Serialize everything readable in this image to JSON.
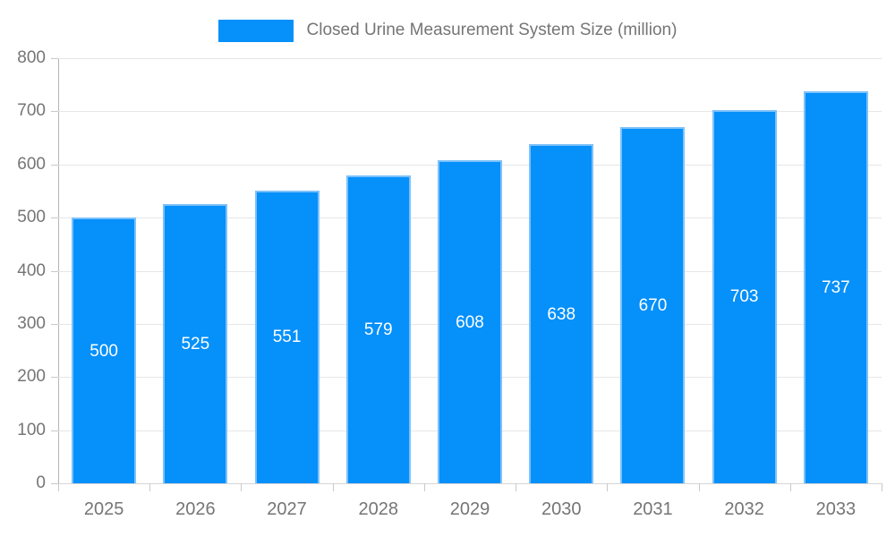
{
  "chart_data": {
    "type": "bar",
    "title": "Closed Urine Measurement System Size (million)",
    "categories": [
      "2025",
      "2026",
      "2027",
      "2028",
      "2029",
      "2030",
      "2031",
      "2032",
      "2033"
    ],
    "values": [
      500,
      525,
      551,
      579,
      608,
      638,
      670,
      703,
      737
    ],
    "series": [
      {
        "name": "Closed Urine Measurement System Size (million)",
        "values": [
          500,
          525,
          551,
          579,
          608,
          638,
          670,
          703,
          737
        ]
      }
    ],
    "xlabel": "",
    "ylabel": "",
    "ylim": [
      0,
      800
    ],
    "ytick_step": 100,
    "grid": "horizontal",
    "legend_position": "top-center",
    "bar_color": "#0590fa",
    "bar_border_color": "#7dc1f9",
    "value_label_color": "#ffffff",
    "axis_text_color": "#757575",
    "gridline_color": "#e6e6e6"
  }
}
